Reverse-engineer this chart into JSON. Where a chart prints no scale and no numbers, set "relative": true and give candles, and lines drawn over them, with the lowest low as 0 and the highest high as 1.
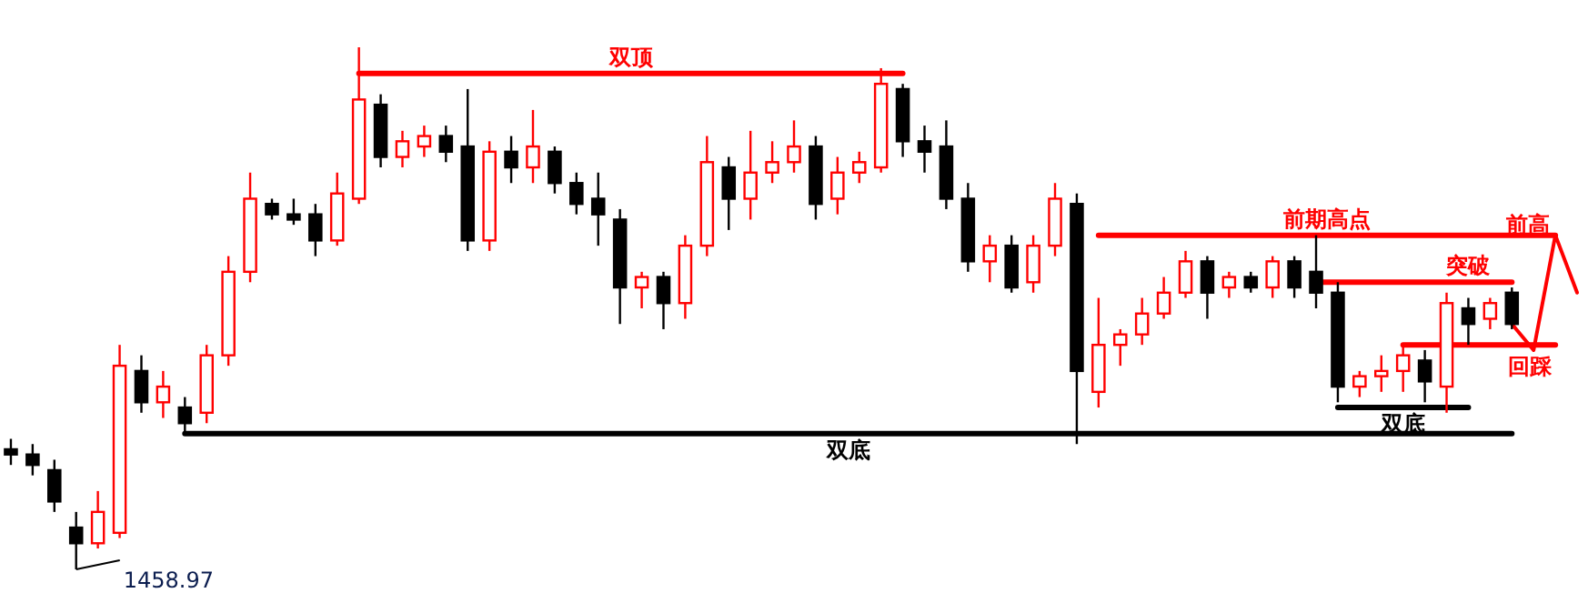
{
  "chart_data": {
    "type": "candlestick",
    "relative": true,
    "categories": [
      null,
      null,
      null,
      null,
      null,
      null,
      null,
      null,
      null,
      null,
      null,
      null,
      null,
      null,
      null,
      null,
      null,
      null,
      null,
      null,
      null,
      null,
      null,
      null,
      null,
      null,
      null,
      null,
      null,
      null,
      null,
      null,
      null,
      null,
      null,
      null,
      null,
      null,
      null,
      null,
      null,
      null,
      null,
      null,
      null,
      null,
      null,
      null,
      null,
      null,
      null,
      null,
      null,
      null,
      null,
      null,
      null,
      null,
      null,
      null,
      null,
      null,
      null,
      null,
      null,
      null,
      null,
      null,
      null,
      null,
      null,
      null,
      null
    ],
    "ohlc": [
      [
        0.23,
        0.25,
        0.2,
        0.22
      ],
      [
        0.22,
        0.24,
        0.18,
        0.2
      ],
      [
        0.19,
        0.21,
        0.11,
        0.13
      ],
      [
        0.08,
        0.11,
        0,
        0.05
      ],
      [
        0.05,
        0.15,
        0.04,
        0.11
      ],
      [
        0.07,
        0.43,
        0.06,
        0.39
      ],
      [
        0.38,
        0.41,
        0.3,
        0.32
      ],
      [
        0.32,
        0.38,
        0.29,
        0.35
      ],
      [
        0.31,
        0.33,
        0.26,
        0.28
      ],
      [
        0.3,
        0.43,
        0.28,
        0.41
      ],
      [
        0.41,
        0.6,
        0.39,
        0.57
      ],
      [
        0.57,
        0.76,
        0.55,
        0.71
      ],
      [
        0.7,
        0.71,
        0.67,
        0.68
      ],
      [
        0.68,
        0.71,
        0.66,
        0.67
      ],
      [
        0.68,
        0.7,
        0.6,
        0.63
      ],
      [
        0.63,
        0.76,
        0.62,
        0.72
      ],
      [
        0.71,
        1,
        0.7,
        0.9
      ],
      [
        0.89,
        0.91,
        0.77,
        0.79
      ],
      [
        0.79,
        0.84,
        0.77,
        0.82
      ],
      [
        0.81,
        0.85,
        0.79,
        0.83
      ],
      [
        0.83,
        0.85,
        0.78,
        0.8
      ],
      [
        0.81,
        0.92,
        0.61,
        0.63
      ],
      [
        0.63,
        0.82,
        0.61,
        0.8
      ],
      [
        0.8,
        0.83,
        0.74,
        0.77
      ],
      [
        0.77,
        0.88,
        0.74,
        0.81
      ],
      [
        0.8,
        0.81,
        0.72,
        0.74
      ],
      [
        0.74,
        0.76,
        0.68,
        0.7
      ],
      [
        0.71,
        0.76,
        0.62,
        0.68
      ],
      [
        0.67,
        0.69,
        0.47,
        0.54
      ],
      [
        0.54,
        0.57,
        0.5,
        0.56
      ],
      [
        0.56,
        0.57,
        0.46,
        0.51
      ],
      [
        0.51,
        0.64,
        0.48,
        0.62
      ],
      [
        0.62,
        0.83,
        0.6,
        0.78
      ],
      [
        0.77,
        0.79,
        0.65,
        0.71
      ],
      [
        0.71,
        0.84,
        0.67,
        0.76
      ],
      [
        0.76,
        0.82,
        0.74,
        0.78
      ],
      [
        0.78,
        0.86,
        0.76,
        0.81
      ],
      [
        0.81,
        0.83,
        0.67,
        0.7
      ],
      [
        0.71,
        0.79,
        0.68,
        0.76
      ],
      [
        0.76,
        0.8,
        0.74,
        0.78
      ],
      [
        0.77,
        0.96,
        0.76,
        0.93
      ],
      [
        0.92,
        0.93,
        0.79,
        0.82
      ],
      [
        0.82,
        0.85,
        0.76,
        0.8
      ],
      [
        0.81,
        0.86,
        0.69,
        0.71
      ],
      [
        0.71,
        0.74,
        0.57,
        0.59
      ],
      [
        0.59,
        0.64,
        0.55,
        0.62
      ],
      [
        0.62,
        0.64,
        0.53,
        0.54
      ],
      [
        0.55,
        0.64,
        0.53,
        0.62
      ],
      [
        0.62,
        0.74,
        0.6,
        0.71
      ],
      [
        0.7,
        0.72,
        0.24,
        0.38
      ],
      [
        0.34,
        0.52,
        0.31,
        0.43
      ],
      [
        0.43,
        0.46,
        0.39,
        0.45
      ],
      [
        0.45,
        0.52,
        0.43,
        0.49
      ],
      [
        0.49,
        0.56,
        0.48,
        0.53
      ],
      [
        0.53,
        0.61,
        0.52,
        0.59
      ],
      [
        0.59,
        0.6,
        0.48,
        0.53
      ],
      [
        0.54,
        0.57,
        0.52,
        0.56
      ],
      [
        0.56,
        0.57,
        0.53,
        0.54
      ],
      [
        0.54,
        0.6,
        0.52,
        0.59
      ],
      [
        0.59,
        0.6,
        0.52,
        0.54
      ],
      [
        0.57,
        0.64,
        0.5,
        0.53
      ],
      [
        0.53,
        0.55,
        0.32,
        0.35
      ],
      [
        0.35,
        0.38,
        0.33,
        0.37
      ],
      [
        0.37,
        0.41,
        0.34,
        0.38
      ],
      [
        0.38,
        0.43,
        0.34,
        0.41
      ],
      [
        0.4,
        0.42,
        0.32,
        0.36
      ],
      [
        0.35,
        0.53,
        0.3,
        0.51
      ],
      [
        0.5,
        0.52,
        0.43,
        0.47
      ],
      [
        0.48,
        0.52,
        0.46,
        0.51
      ],
      [
        0.53,
        0.54,
        0.46,
        0.47
      ],
      null,
      null,
      null
    ],
    "colors": [
      "#000000",
      "#000000",
      "#000000",
      "#000000",
      "#ff0000",
      "#ff0000",
      "#000000",
      "#ff0000",
      "#000000",
      "#ff0000",
      "#ff0000",
      "#ff0000",
      "#000000",
      "#000000",
      "#000000",
      "#ff0000",
      "#ff0000",
      "#000000",
      "#ff0000",
      "#ff0000",
      "#000000",
      "#000000",
      "#ff0000",
      "#000000",
      "#ff0000",
      "#000000",
      "#000000",
      "#000000",
      "#000000",
      "#ff0000",
      "#000000",
      "#ff0000",
      "#ff0000",
      "#000000",
      "#ff0000",
      "#ff0000",
      "#ff0000",
      "#000000",
      "#ff0000",
      "#ff0000",
      "#ff0000",
      "#000000",
      "#000000",
      "#000000",
      "#000000",
      "#ff0000",
      "#000000",
      "#ff0000",
      "#ff0000",
      "#000000",
      "#ff0000",
      "#ff0000",
      "#ff0000",
      "#ff0000",
      "#ff0000",
      "#000000",
      "#ff0000",
      "#000000",
      "#ff0000",
      "#000000",
      "#000000",
      "#000000",
      "#ff0000",
      "#ff0000",
      "#ff0000",
      "#000000",
      "#ff0000",
      "#000000",
      "#ff0000",
      "#000000",
      null,
      null,
      null
    ],
    "series": [
      {
        "type": "line",
        "name": "双顶",
        "color": "#ff0000",
        "values": [
          null,
          null,
          null,
          null,
          null,
          null,
          null,
          null,
          null,
          null,
          null,
          null,
          null,
          null,
          null,
          null,
          0.95,
          0.95,
          0.95,
          0.95,
          0.95,
          0.95,
          0.95,
          0.95,
          0.95,
          0.95,
          0.95,
          0.95,
          0.95,
          0.95,
          0.95,
          0.95,
          0.95,
          0.95,
          0.95,
          0.95,
          0.95,
          0.95,
          0.95,
          0.95,
          0.95,
          0.95,
          null,
          null,
          null,
          null,
          null,
          null,
          null,
          null,
          null,
          null,
          null,
          null,
          null,
          null,
          null,
          null,
          null,
          null,
          null,
          null,
          null,
          null,
          null,
          null,
          null,
          null,
          null,
          null,
          null,
          null,
          null
        ]
      },
      {
        "type": "line",
        "name": "双底",
        "color": "#000000",
        "values": [
          null,
          null,
          null,
          null,
          null,
          null,
          null,
          null,
          0.26,
          0.26,
          0.26,
          0.26,
          0.26,
          0.26,
          0.26,
          0.26,
          0.26,
          0.26,
          0.26,
          0.26,
          0.26,
          0.26,
          0.26,
          0.26,
          0.26,
          0.26,
          0.26,
          0.26,
          0.26,
          0.26,
          0.26,
          0.26,
          0.26,
          0.26,
          0.26,
          0.26,
          0.26,
          0.26,
          0.26,
          0.26,
          0.26,
          0.26,
          0.26,
          0.26,
          0.26,
          0.26,
          0.26,
          0.26,
          0.26,
          0.26,
          0.26,
          0.26,
          0.26,
          0.26,
          0.26,
          0.26,
          0.26,
          0.26,
          0.26,
          0.26,
          0.26,
          0.26,
          0.26,
          0.26,
          0.26,
          0.26,
          0.26,
          0.26,
          0.26,
          0.26,
          null,
          null,
          null
        ]
      },
      {
        "type": "line",
        "name": "前期高点",
        "color": "#ff0000",
        "values": [
          null,
          null,
          null,
          null,
          null,
          null,
          null,
          null,
          null,
          null,
          null,
          null,
          null,
          null,
          null,
          null,
          null,
          null,
          null,
          null,
          null,
          null,
          null,
          null,
          null,
          null,
          null,
          null,
          null,
          null,
          null,
          null,
          null,
          null,
          null,
          null,
          null,
          null,
          null,
          null,
          null,
          null,
          null,
          null,
          null,
          null,
          null,
          null,
          null,
          null,
          0.64,
          0.64,
          0.64,
          0.64,
          0.64,
          0.64,
          0.64,
          0.64,
          0.64,
          0.64,
          0.64,
          0.64,
          0.64,
          0.64,
          0.64,
          0.64,
          0.64,
          0.64,
          0.64,
          0.64,
          0.64,
          0.64,
          null
        ]
      },
      {
        "type": "line",
        "name": "突破",
        "color": "#ff0000",
        "values": [
          null,
          null,
          null,
          null,
          null,
          null,
          null,
          null,
          null,
          null,
          null,
          null,
          null,
          null,
          null,
          null,
          null,
          null,
          null,
          null,
          null,
          null,
          null,
          null,
          null,
          null,
          null,
          null,
          null,
          null,
          null,
          null,
          null,
          null,
          null,
          null,
          null,
          null,
          null,
          null,
          null,
          null,
          null,
          null,
          null,
          null,
          null,
          null,
          null,
          null,
          null,
          null,
          null,
          null,
          null,
          null,
          null,
          null,
          null,
          null,
          0.55,
          0.55,
          0.55,
          0.55,
          0.55,
          0.55,
          0.55,
          0.55,
          0.55,
          0.55,
          null,
          null,
          null
        ]
      },
      {
        "type": "line",
        "name": "回踩",
        "color": "#ff0000",
        "values": [
          null,
          null,
          null,
          null,
          null,
          null,
          null,
          null,
          null,
          null,
          null,
          null,
          null,
          null,
          null,
          null,
          null,
          null,
          null,
          null,
          null,
          null,
          null,
          null,
          null,
          null,
          null,
          null,
          null,
          null,
          null,
          null,
          null,
          null,
          null,
          null,
          null,
          null,
          null,
          null,
          null,
          null,
          null,
          null,
          null,
          null,
          null,
          null,
          null,
          null,
          null,
          null,
          null,
          null,
          null,
          null,
          null,
          null,
          null,
          null,
          null,
          null,
          null,
          null,
          0.43,
          0.43,
          0.43,
          0.43,
          0.43,
          0.43,
          0.43,
          0.43,
          null
        ]
      },
      {
        "type": "line",
        "name": "双底",
        "color": "#000000",
        "values": [
          null,
          null,
          null,
          null,
          null,
          null,
          null,
          null,
          null,
          null,
          null,
          null,
          null,
          null,
          null,
          null,
          null,
          null,
          null,
          null,
          null,
          null,
          null,
          null,
          null,
          null,
          null,
          null,
          null,
          null,
          null,
          null,
          null,
          null,
          null,
          null,
          null,
          null,
          null,
          null,
          null,
          null,
          null,
          null,
          null,
          null,
          null,
          null,
          null,
          null,
          null,
          null,
          null,
          null,
          null,
          null,
          null,
          null,
          null,
          null,
          null,
          0.31,
          0.31,
          0.31,
          0.31,
          0.31,
          0.31,
          0.31,
          null,
          null,
          null,
          null,
          null
        ]
      },
      {
        "type": "line",
        "name": "前高",
        "color": "#ff0000",
        "values": [
          null,
          null,
          null,
          null,
          null,
          null,
          null,
          null,
          null,
          null,
          null,
          null,
          null,
          null,
          null,
          null,
          null,
          null,
          null,
          null,
          null,
          null,
          null,
          null,
          null,
          null,
          null,
          null,
          null,
          null,
          null,
          null,
          null,
          null,
          null,
          null,
          null,
          null,
          null,
          null,
          null,
          null,
          null,
          null,
          null,
          null,
          null,
          null,
          null,
          null,
          null,
          null,
          null,
          null,
          null,
          null,
          null,
          null,
          null,
          null,
          null,
          null,
          null,
          null,
          null,
          null,
          null,
          null,
          null,
          0.47,
          0.42,
          0.64,
          0.53
        ]
      }
    ],
    "annotations": [
      "1458.97"
    ]
  }
}
